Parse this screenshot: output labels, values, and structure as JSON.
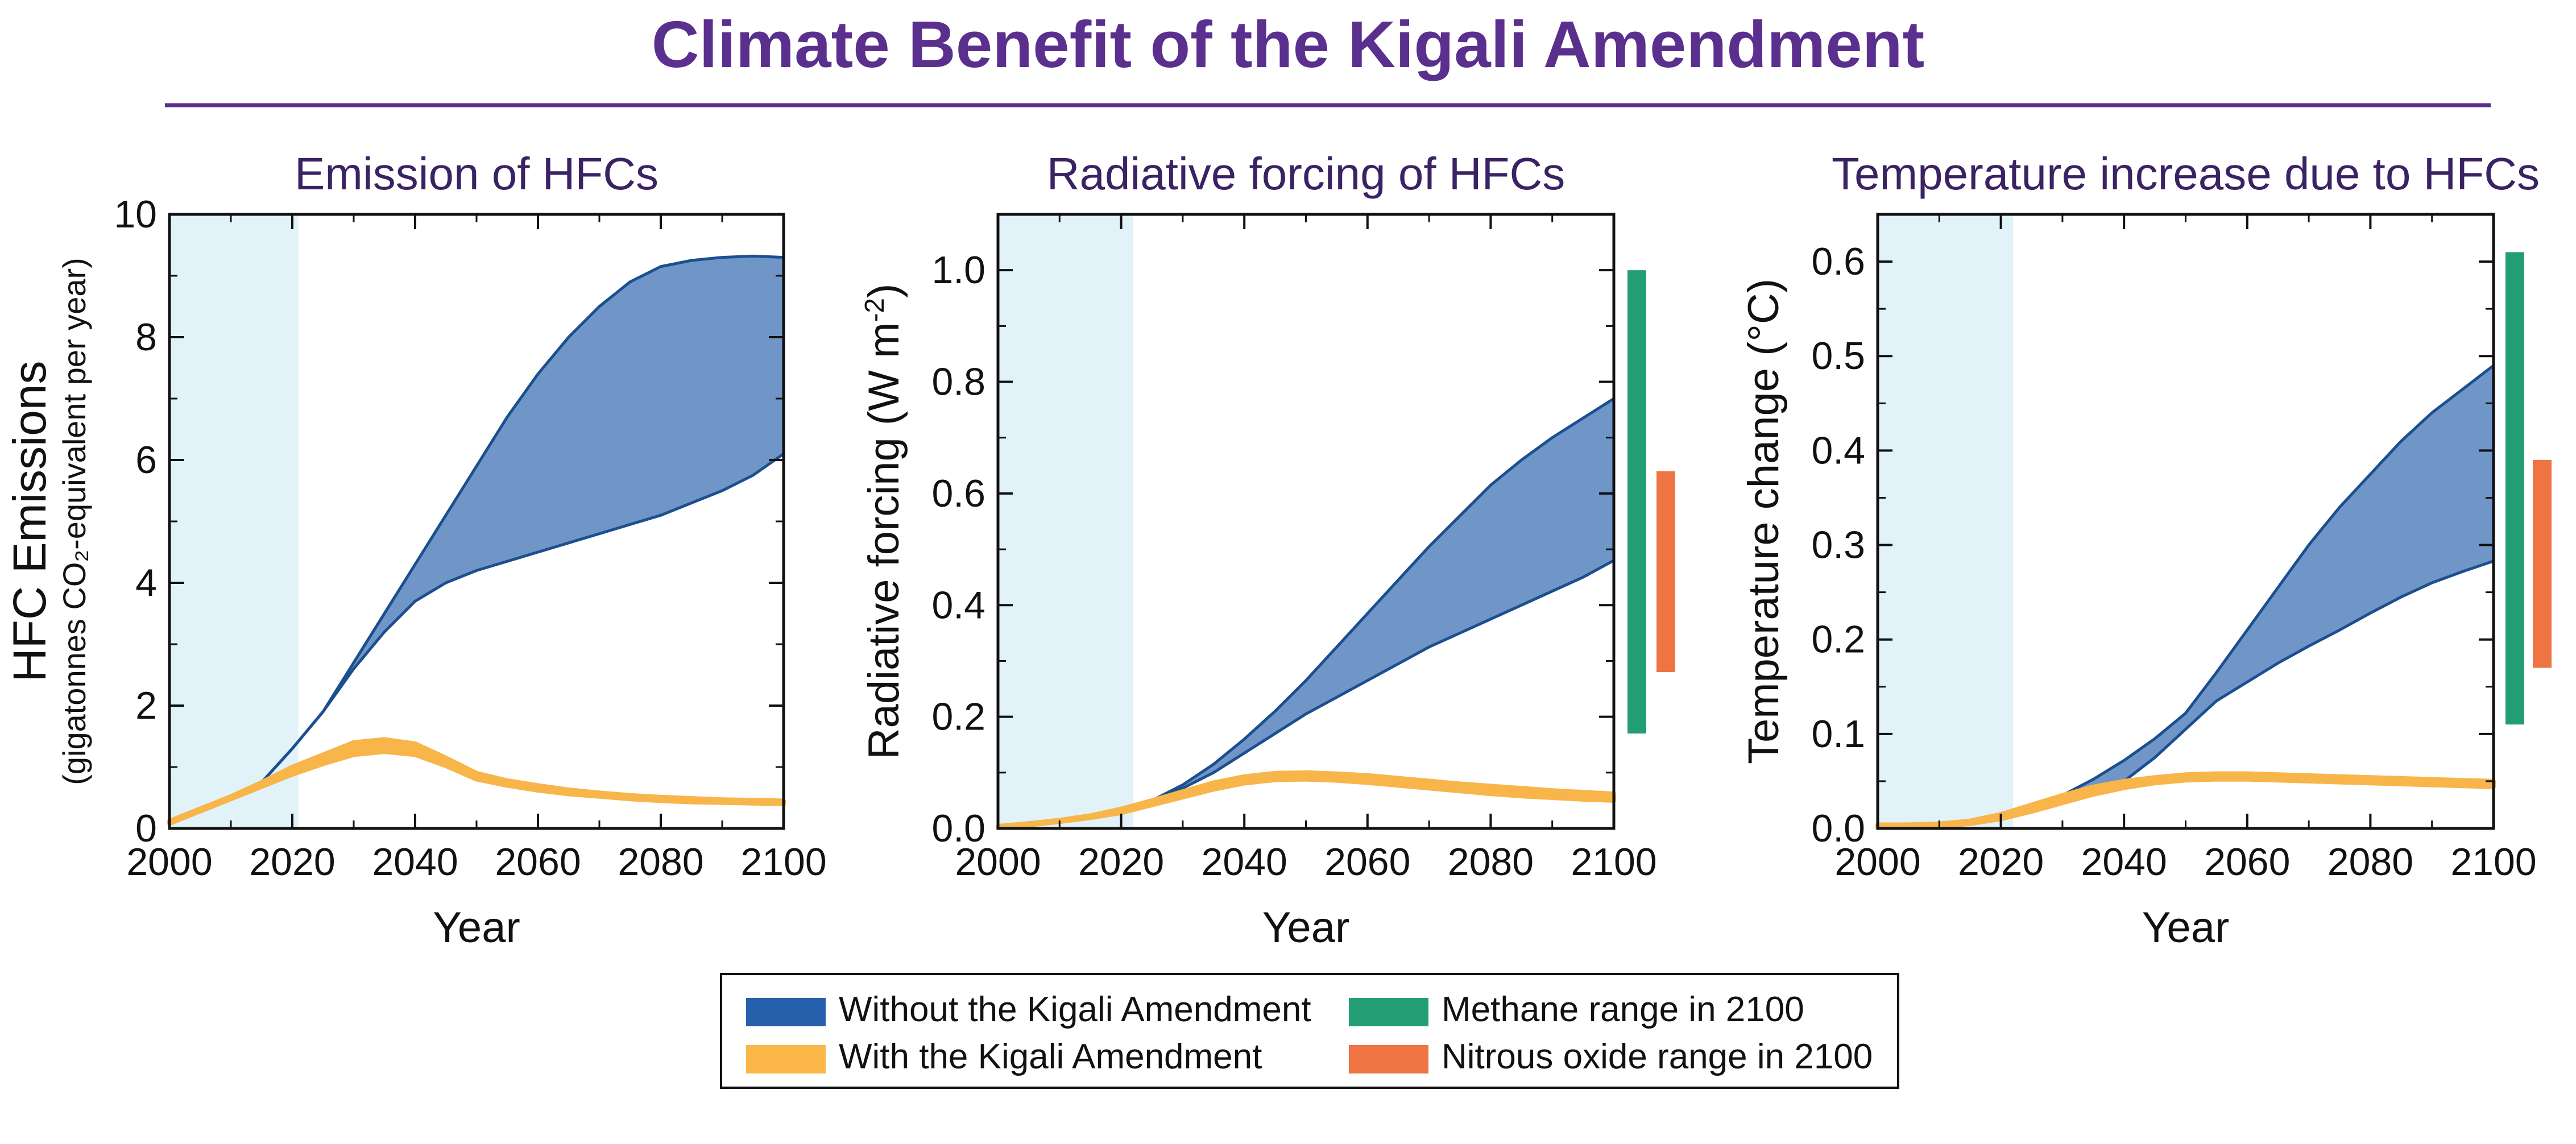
{
  "figure": {
    "title": "Climate Benefit of the Kigali Amendment",
    "title_color": "#5b2f8e",
    "subtitle_color": "#3a2263"
  },
  "colors": {
    "without_fill": "#7096c8",
    "without_line": "#1c4f8f",
    "with_fill": "#f8b54a",
    "methane": "#239e74",
    "nitrous": "#ee7444",
    "historical_shade": "#e2f2f9"
  },
  "legend": {
    "items": [
      {
        "label": "Without the Kigali Amendment",
        "color": "#2660ac"
      },
      {
        "label": "With the Kigali Amendment",
        "color": "#fbb848"
      },
      {
        "label": "Methane range in 2100",
        "color": "#239e74"
      },
      {
        "label": "Nitrous oxide range in 2100",
        "color": "#ee7444"
      }
    ]
  },
  "chart_data": [
    {
      "type": "area",
      "title": "Emission of HFCs",
      "xlabel": "Year",
      "ylabel": "HFC Emissions",
      "ylabel_sub": "(gigatonnes CO₂-equivalent per year)",
      "xlim": [
        2000,
        2100
      ],
      "ylim": [
        0,
        10
      ],
      "xticks": [
        2000,
        2020,
        2040,
        2060,
        2080,
        2100
      ],
      "yticks": [
        0,
        2,
        4,
        6,
        8,
        10
      ],
      "ytick_labels": [
        "0",
        "2",
        "4",
        "6",
        "8",
        "10"
      ],
      "historical_shade": [
        2000,
        2021
      ],
      "series": [
        {
          "name": "Without the Kigali Amendment",
          "x": [
            2000,
            2005,
            2010,
            2015,
            2020,
            2025,
            2030,
            2035,
            2040,
            2045,
            2050,
            2055,
            2060,
            2065,
            2070,
            2075,
            2080,
            2085,
            2090,
            2095,
            2100
          ],
          "upper": [
            0.1,
            0.3,
            0.5,
            0.75,
            1.3,
            1.9,
            2.7,
            3.5,
            4.3,
            5.1,
            5.9,
            6.7,
            7.4,
            8.0,
            8.5,
            8.9,
            9.15,
            9.25,
            9.3,
            9.32,
            9.3
          ],
          "lower": [
            0.1,
            0.3,
            0.5,
            0.75,
            1.3,
            1.9,
            2.6,
            3.2,
            3.7,
            4.0,
            4.2,
            4.35,
            4.5,
            4.65,
            4.8,
            4.95,
            5.1,
            5.3,
            5.5,
            5.75,
            6.1
          ]
        },
        {
          "name": "With the Kigali Amendment",
          "x": [
            2000,
            2005,
            2010,
            2015,
            2020,
            2025,
            2030,
            2035,
            2040,
            2045,
            2050,
            2055,
            2060,
            2065,
            2070,
            2075,
            2080,
            2085,
            2090,
            2095,
            2100
          ],
          "upper": [
            0.12,
            0.32,
            0.52,
            0.75,
            1.0,
            1.2,
            1.4,
            1.45,
            1.38,
            1.15,
            0.9,
            0.78,
            0.7,
            0.63,
            0.58,
            0.54,
            0.51,
            0.49,
            0.47,
            0.46,
            0.45
          ],
          "lower": [
            0.08,
            0.28,
            0.48,
            0.68,
            0.88,
            1.05,
            1.2,
            1.25,
            1.2,
            1.02,
            0.8,
            0.7,
            0.62,
            0.56,
            0.52,
            0.48,
            0.45,
            0.43,
            0.42,
            0.41,
            0.4
          ]
        }
      ]
    },
    {
      "type": "area",
      "title": "Radiative forcing of HFCs",
      "xlabel": "Year",
      "ylabel": "Radiative forcing (W m",
      "ylabel_sup": "-2",
      "ylabel_end": ")",
      "xlim": [
        2000,
        2100
      ],
      "ylim": [
        0,
        1.1
      ],
      "xticks": [
        2000,
        2020,
        2040,
        2060,
        2080,
        2100
      ],
      "yticks": [
        0,
        0.2,
        0.4,
        0.6,
        0.8,
        1.0
      ],
      "ytick_labels": [
        "0.0",
        "0.2",
        "0.4",
        "0.6",
        "0.8",
        "1.0"
      ],
      "historical_shade": [
        2000,
        2022
      ],
      "series": [
        {
          "name": "Without the Kigali Amendment",
          "x": [
            2000,
            2005,
            2010,
            2015,
            2020,
            2025,
            2030,
            2035,
            2040,
            2045,
            2050,
            2055,
            2060,
            2065,
            2070,
            2075,
            2080,
            2085,
            2090,
            2095,
            2100
          ],
          "upper": [
            0.003,
            0.008,
            0.014,
            0.022,
            0.032,
            0.05,
            0.078,
            0.115,
            0.16,
            0.21,
            0.265,
            0.325,
            0.385,
            0.445,
            0.505,
            0.56,
            0.615,
            0.66,
            0.7,
            0.735,
            0.77
          ],
          "lower": [
            0.003,
            0.008,
            0.014,
            0.022,
            0.032,
            0.048,
            0.072,
            0.1,
            0.135,
            0.17,
            0.205,
            0.235,
            0.265,
            0.295,
            0.325,
            0.35,
            0.375,
            0.4,
            0.425,
            0.45,
            0.48
          ]
        },
        {
          "name": "With the Kigali Amendment",
          "x": [
            2000,
            2005,
            2010,
            2015,
            2020,
            2025,
            2030,
            2035,
            2040,
            2045,
            2050,
            2055,
            2060,
            2065,
            2070,
            2075,
            2080,
            2085,
            2090,
            2095,
            2100
          ],
          "upper": [
            0.004,
            0.009,
            0.015,
            0.023,
            0.035,
            0.05,
            0.066,
            0.082,
            0.093,
            0.099,
            0.1,
            0.098,
            0.095,
            0.09,
            0.085,
            0.08,
            0.076,
            0.072,
            0.068,
            0.065,
            0.062
          ],
          "lower": [
            0.002,
            0.006,
            0.012,
            0.019,
            0.028,
            0.042,
            0.056,
            0.07,
            0.081,
            0.087,
            0.088,
            0.086,
            0.082,
            0.077,
            0.072,
            0.067,
            0.062,
            0.058,
            0.055,
            0.052,
            0.05
          ]
        }
      ],
      "ranges_2100": [
        {
          "name": "Methane range in 2100",
          "min": 0.17,
          "max": 1.0
        },
        {
          "name": "Nitrous oxide range in 2100",
          "min": 0.28,
          "max": 0.64
        }
      ]
    },
    {
      "type": "area",
      "title": "Temperature increase due to HFCs",
      "xlabel": "Year",
      "ylabel": "Temperature change (°C)",
      "xlim": [
        2000,
        2100
      ],
      "ylim": [
        0,
        0.65
      ],
      "xticks": [
        2000,
        2020,
        2040,
        2060,
        2080,
        2100
      ],
      "yticks": [
        0,
        0.1,
        0.2,
        0.3,
        0.4,
        0.5,
        0.6
      ],
      "ytick_labels": [
        "0.0",
        "0.1",
        "0.2",
        "0.3",
        "0.4",
        "0.5",
        "0.6"
      ],
      "historical_shade": [
        2000,
        2022
      ],
      "series": [
        {
          "name": "Without the Kigali Amendment",
          "x": [
            2000,
            2005,
            2010,
            2015,
            2020,
            2025,
            2030,
            2035,
            2040,
            2045,
            2050,
            2055,
            2060,
            2065,
            2070,
            2075,
            2080,
            2085,
            2090,
            2095,
            2100
          ],
          "upper": [
            0.003,
            0.003,
            0.004,
            0.006,
            0.01,
            0.02,
            0.035,
            0.052,
            0.072,
            0.095,
            0.122,
            0.165,
            0.21,
            0.255,
            0.3,
            0.34,
            0.375,
            0.41,
            0.44,
            0.465,
            0.49
          ],
          "lower": [
            0.003,
            0.003,
            0.004,
            0.006,
            0.01,
            0.018,
            0.028,
            0.038,
            0.05,
            0.075,
            0.105,
            0.135,
            0.155,
            0.175,
            0.193,
            0.21,
            0.228,
            0.245,
            0.26,
            0.272,
            0.283
          ]
        },
        {
          "name": "With the Kigali Amendment",
          "x": [
            2000,
            2005,
            2010,
            2015,
            2020,
            2025,
            2030,
            2035,
            2040,
            2045,
            2050,
            2055,
            2060,
            2065,
            2070,
            2075,
            2080,
            2085,
            2090,
            2095,
            2100
          ],
          "upper": [
            0.004,
            0.004,
            0.005,
            0.008,
            0.015,
            0.025,
            0.035,
            0.044,
            0.05,
            0.054,
            0.057,
            0.058,
            0.058,
            0.057,
            0.056,
            0.055,
            0.054,
            0.053,
            0.052,
            0.051,
            0.05
          ],
          "lower": [
            0.001,
            0.001,
            0.002,
            0.005,
            0.01,
            0.018,
            0.027,
            0.036,
            0.043,
            0.048,
            0.051,
            0.052,
            0.052,
            0.051,
            0.05,
            0.049,
            0.048,
            0.047,
            0.046,
            0.045,
            0.044
          ]
        }
      ],
      "ranges_2100": [
        {
          "name": "Methane range in 2100",
          "min": 0.11,
          "max": 0.61
        },
        {
          "name": "Nitrous oxide range in 2100",
          "min": 0.17,
          "max": 0.39
        }
      ]
    }
  ]
}
